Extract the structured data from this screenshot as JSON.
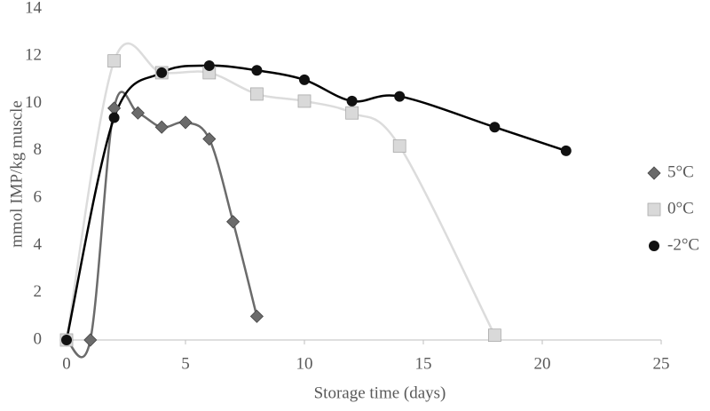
{
  "chart_data": {
    "type": "scatter",
    "x_label": "Storage time (days)",
    "y_label": "mmol IMP/kg muscle",
    "xlim": [
      0,
      25
    ],
    "xticks": [
      0,
      5,
      10,
      15,
      20,
      25
    ],
    "ylim": [
      0,
      14
    ],
    "yticks": [
      0,
      2,
      4,
      6,
      8,
      10,
      12,
      14
    ],
    "grid": false,
    "legend": "right",
    "trendline": "smooth",
    "series": [
      {
        "name": "5°C",
        "marker": "diamond",
        "color": "#6b6b6b",
        "x": [
          0,
          1,
          2,
          3,
          4,
          5,
          6,
          7,
          8
        ],
        "values": [
          0,
          0,
          9.8,
          9.6,
          9.0,
          9.2,
          8.5,
          5.0,
          1.0
        ]
      },
      {
        "name": "0°C",
        "marker": "square",
        "color": "#d9d9d9",
        "x": [
          0,
          2,
          4,
          6,
          8,
          10,
          12,
          14,
          18
        ],
        "values": [
          0,
          11.8,
          11.3,
          11.3,
          10.4,
          10.1,
          9.6,
          8.2,
          0.2
        ]
      },
      {
        "name": "-2°C",
        "marker": "circle",
        "color": "#111111",
        "x": [
          0,
          2,
          4,
          6,
          8,
          10,
          12,
          14,
          18,
          21
        ],
        "values": [
          0,
          9.4,
          11.3,
          11.6,
          11.4,
          11.0,
          10.1,
          10.3,
          9.0,
          8.0
        ]
      }
    ]
  }
}
